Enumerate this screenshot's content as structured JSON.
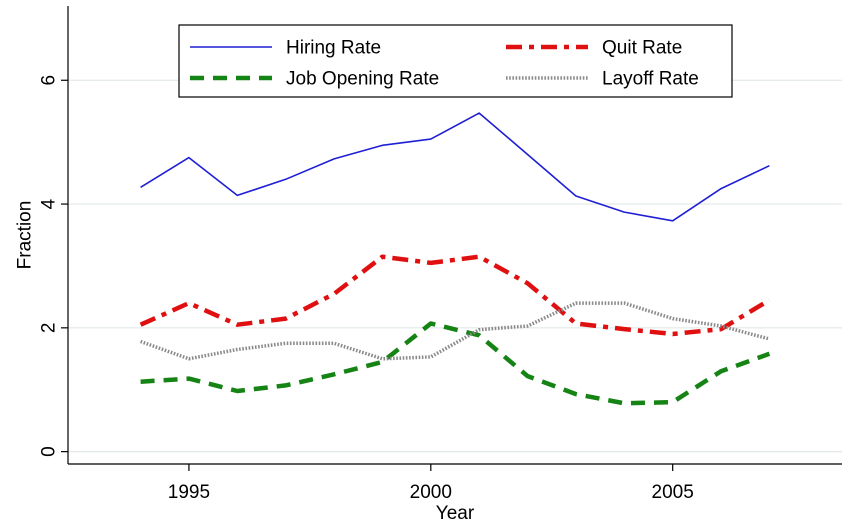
{
  "chart_data": {
    "type": "line",
    "title": "",
    "xlabel": "Year",
    "ylabel": "Fraction",
    "xlim": [
      1992.5,
      2008.5
    ],
    "ylim": [
      -0.2,
      7.2
    ],
    "xticks": [
      1995,
      2000,
      2005
    ],
    "yticks": [
      0,
      2,
      4,
      6
    ],
    "grid": "horizontal",
    "legend_position": "top",
    "x": [
      1994,
      1995,
      1996,
      1997,
      1998,
      1999,
      2000,
      2001,
      2002,
      2003,
      2004,
      2005,
      2006,
      2007
    ],
    "series": [
      {
        "name": "Hiring Rate",
        "style": "solid",
        "color": "#1f1fd6",
        "values": [
          4.27,
          4.75,
          4.14,
          4.4,
          4.73,
          4.95,
          5.05,
          5.47,
          4.8,
          4.13,
          3.87,
          3.73,
          4.25,
          4.62
        ]
      },
      {
        "name": "Quit Rate",
        "style": "dashdot",
        "color": "#e01010",
        "values": [
          2.05,
          2.4,
          2.05,
          2.15,
          2.55,
          3.15,
          3.05,
          3.15,
          2.72,
          2.07,
          1.98,
          1.9,
          1.98,
          2.45
        ]
      },
      {
        "name": "Job Opening Rate",
        "style": "dash",
        "color": "#158415",
        "values": [
          1.13,
          1.18,
          0.98,
          1.07,
          1.25,
          1.45,
          2.07,
          1.88,
          1.22,
          0.93,
          0.78,
          0.8,
          1.3,
          1.58
        ]
      },
      {
        "name": "Layoff Rate",
        "style": "dot",
        "color": "#8a8a8a",
        "values": [
          1.78,
          1.5,
          1.65,
          1.75,
          1.75,
          1.5,
          1.53,
          1.97,
          2.03,
          2.4,
          2.4,
          2.15,
          2.03,
          1.82
        ]
      }
    ]
  }
}
